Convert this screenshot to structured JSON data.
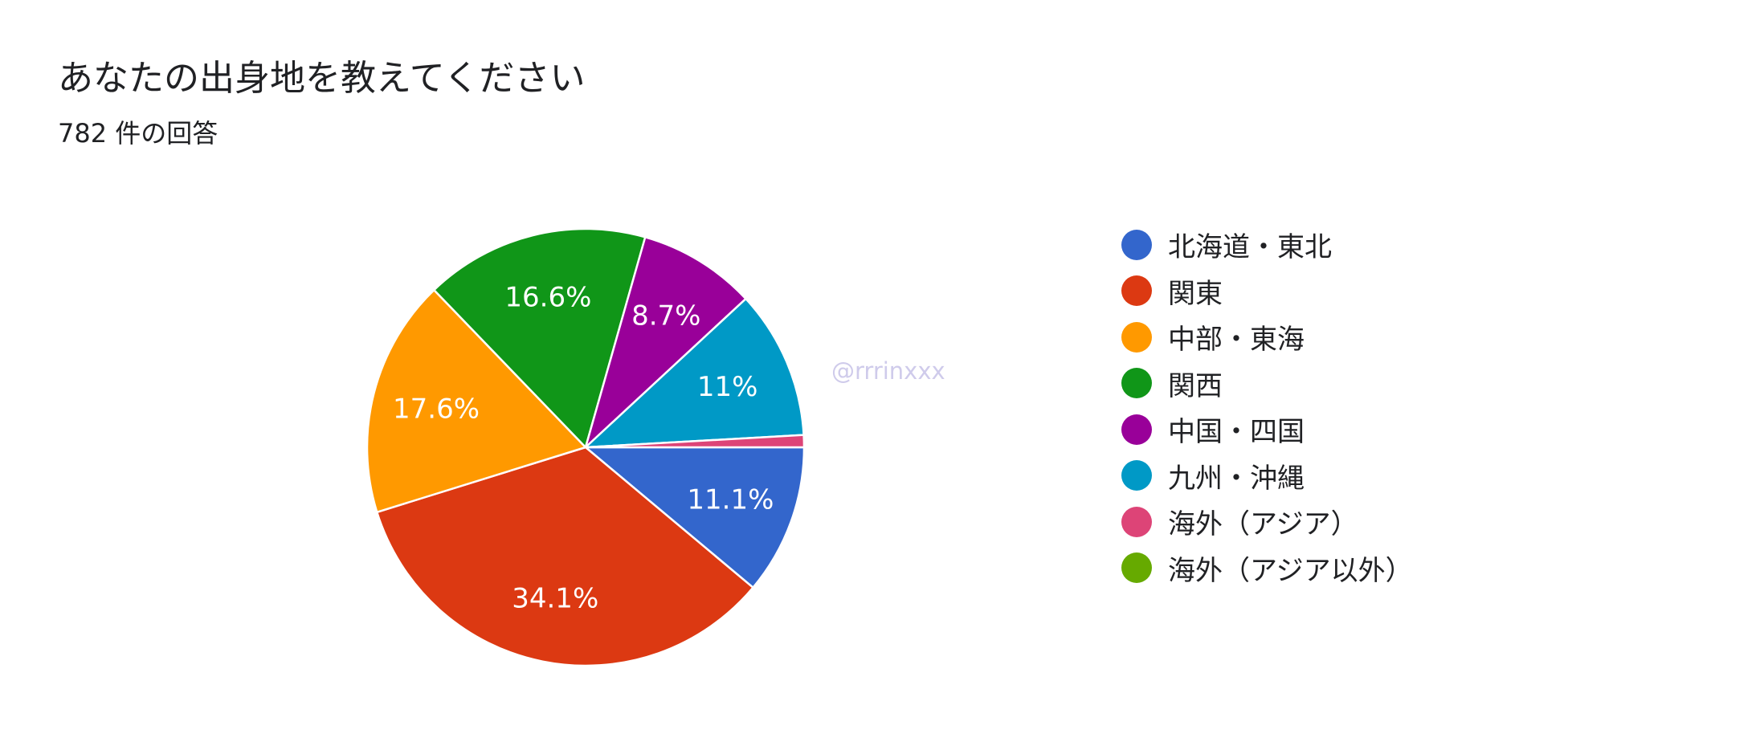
{
  "header": {
    "title": "あなたの出身地を教えてください",
    "subtitle": "782 件の回答"
  },
  "watermark": "@rrrinxxx",
  "chart_data": {
    "type": "pie",
    "title": "あなたの出身地を教えてください",
    "subtitle": "782 件の回答",
    "start_angle_deg": 90,
    "direction": "clockwise",
    "legend_position": "right",
    "slices": [
      {
        "name": "北海道・東北",
        "value": 11.1,
        "label": "11.1%",
        "color": "#3366cc"
      },
      {
        "name": "関東",
        "value": 34.1,
        "label": "34.1%",
        "color": "#dc3912"
      },
      {
        "name": "中部・東海",
        "value": 17.6,
        "label": "17.6%",
        "color": "#ff9900"
      },
      {
        "name": "関西",
        "value": 16.6,
        "label": "16.6%",
        "color": "#109618"
      },
      {
        "name": "中国・四国",
        "value": 8.7,
        "label": "8.7%",
        "color": "#990099"
      },
      {
        "name": "九州・沖縄",
        "value": 11.0,
        "label": "11%",
        "color": "#0099c6"
      },
      {
        "name": "海外（アジア）",
        "value": 0.9,
        "label": "",
        "color": "#dd4477"
      },
      {
        "name": "海外（アジア以外）",
        "value": 0.0,
        "label": "",
        "color": "#66aa00"
      }
    ]
  }
}
